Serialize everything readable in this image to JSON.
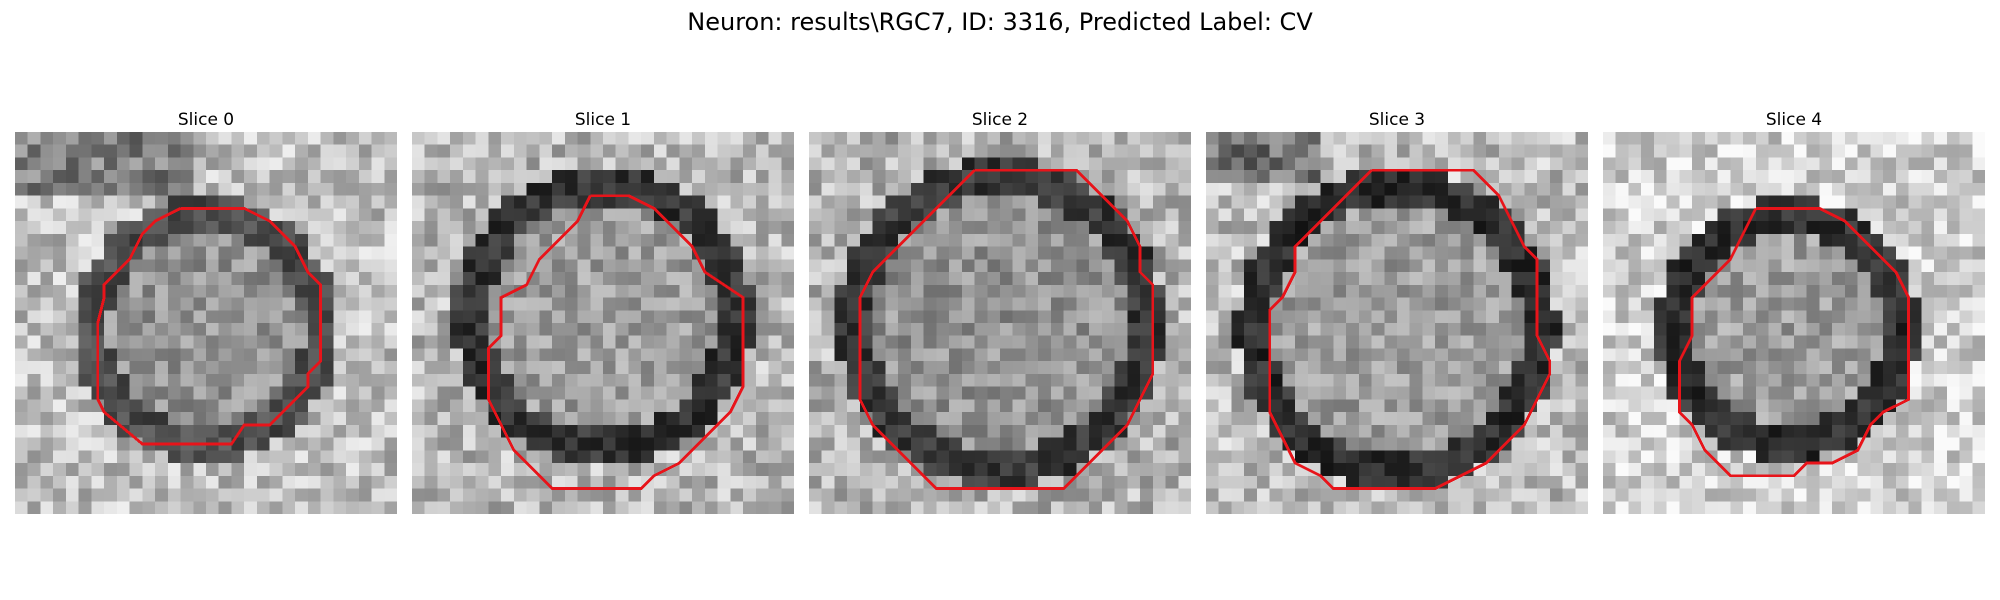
{
  "figure": {
    "title": "Neuron: results\\RGC7, ID: 3316, Predicted Label: CV",
    "contour_color": "#e8141a",
    "colormap": "gray",
    "slices": [
      {
        "label": "Slice 0",
        "icon": "cell-slice-image"
      },
      {
        "label": "Slice 1",
        "icon": "cell-slice-image"
      },
      {
        "label": "Slice 2",
        "icon": "cell-slice-image"
      },
      {
        "label": "Slice 3",
        "icon": "cell-slice-image"
      },
      {
        "label": "Slice 4",
        "icon": "cell-slice-image"
      }
    ]
  }
}
